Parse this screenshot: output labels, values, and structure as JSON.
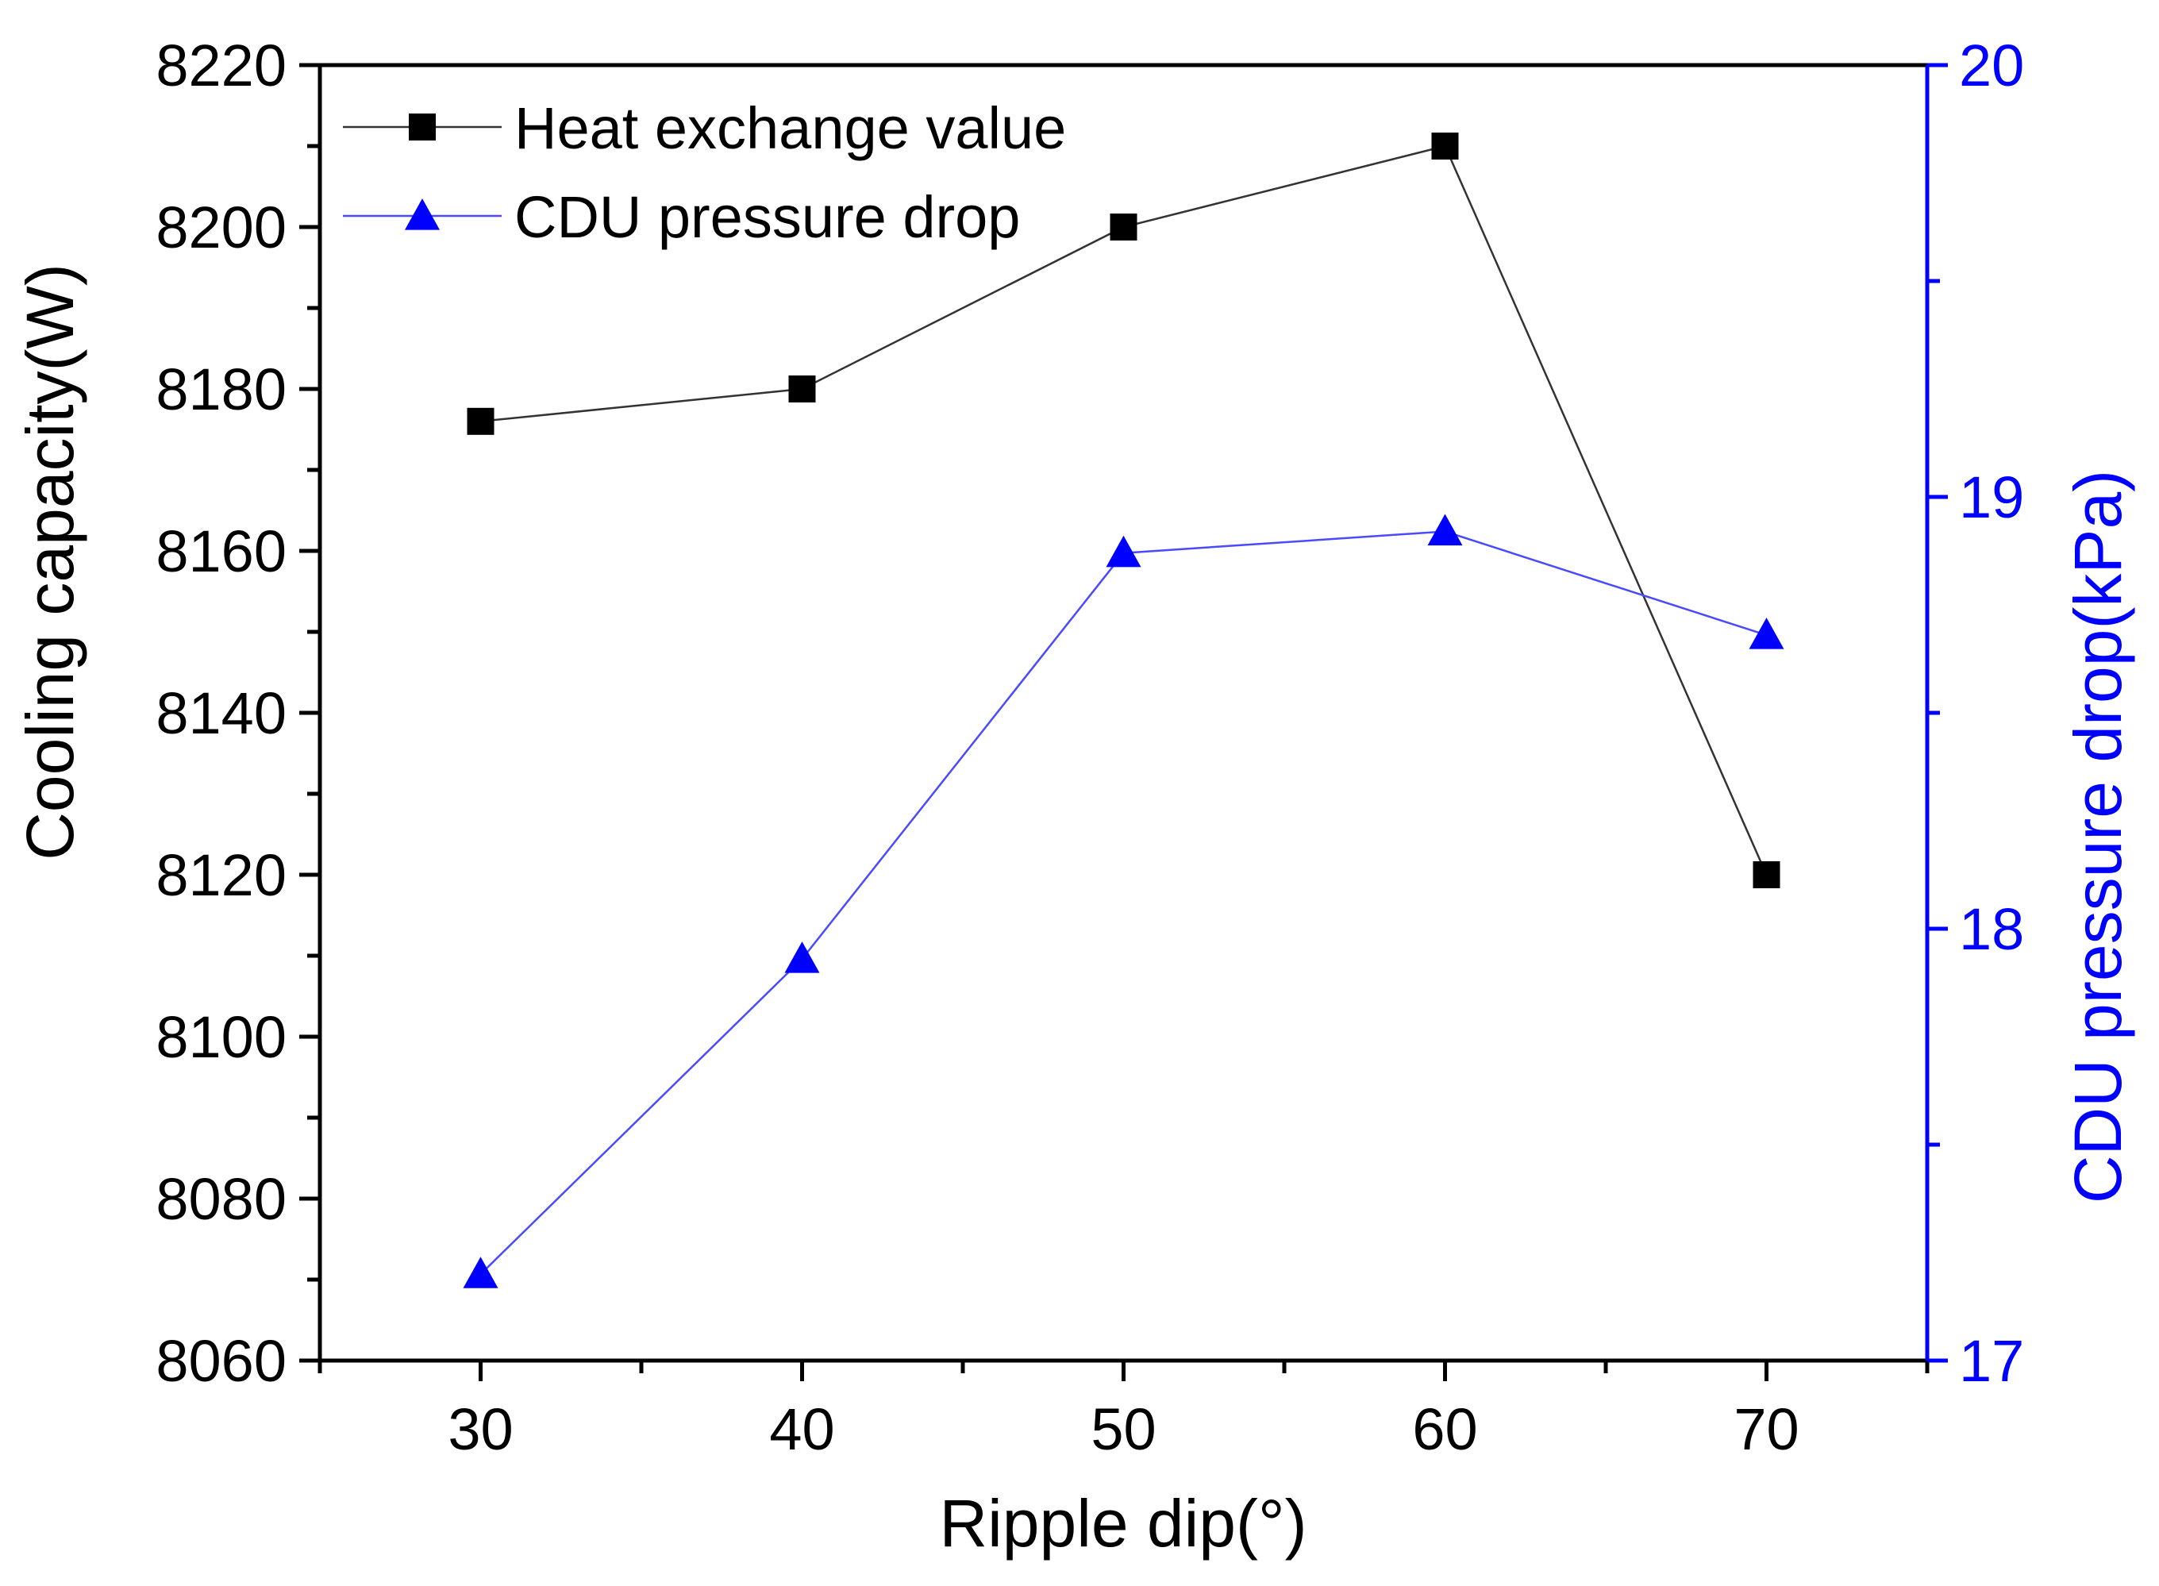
{
  "chart_data": {
    "type": "line",
    "xlabel": "Ripple dip(°)",
    "ylabel": "Cooling capacity(W)",
    "y2label": "CDU pressure drop(kPa)",
    "x": [
      30,
      40,
      50,
      60,
      70
    ],
    "xlim": [
      25,
      75
    ],
    "ylim": [
      8060,
      8220
    ],
    "y2lim": [
      17,
      20
    ],
    "x_ticks": [
      30,
      40,
      50,
      60,
      70
    ],
    "x_tick_labels": [
      "30",
      "40",
      "50",
      "60",
      "70"
    ],
    "y_ticks": [
      8060,
      8080,
      8100,
      8120,
      8140,
      8160,
      8180,
      8200,
      8220
    ],
    "y_tick_labels": [
      "8060",
      "8080",
      "8100",
      "8120",
      "8140",
      "8160",
      "8180",
      "8200",
      "8220"
    ],
    "y2_ticks": [
      17,
      18,
      19,
      20
    ],
    "y2_tick_labels": [
      "17",
      "18",
      "19",
      "20"
    ],
    "legend_position": "top-left",
    "series": [
      {
        "name": "Heat exchange value",
        "axis": "left",
        "marker": "square",
        "color": "#333333",
        "marker_color": "#000000",
        "values": [
          8176,
          8180,
          8200,
          8210,
          8120
        ]
      },
      {
        "name": "CDU pressure drop",
        "axis": "right",
        "marker": "triangle",
        "color": "#4a4aff",
        "marker_color": "#0000ff",
        "values": [
          17.2,
          17.93,
          18.87,
          18.92,
          18.68
        ]
      }
    ],
    "right_axis_color": "#0000ff"
  }
}
